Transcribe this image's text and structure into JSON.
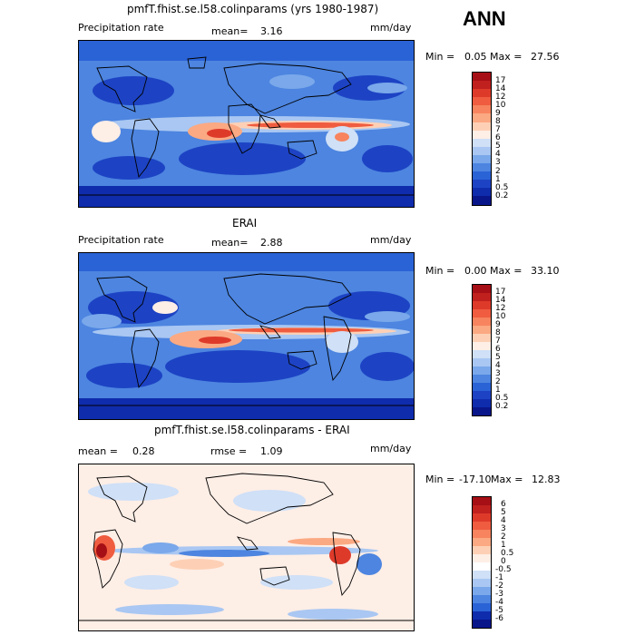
{
  "season": "ANN",
  "panels": [
    {
      "title": "pmfT.fhist.se.l58.colinparams (yrs 1980-1987)",
      "left_label": "Precipitation rate",
      "stat1_label": "mean=",
      "stat1_value": "3.16",
      "units": "mm/day",
      "min_label": "Min =",
      "min_value": "0.05",
      "max_label": "Max =",
      "max_value": "27.56",
      "levels": [
        "17",
        "14",
        "12",
        "10",
        "9",
        "8",
        "7",
        "6",
        "5",
        "4",
        "3",
        "2",
        "1",
        "0.5",
        "0.2"
      ],
      "colors": [
        "#a50f15",
        "#c0201e",
        "#de3a2a",
        "#ef5c3f",
        "#f7845e",
        "#fba982",
        "#fdd0b5",
        "#fdeee6",
        "#cfe0f7",
        "#a9c7f2",
        "#7aa8ea",
        "#4d85e0",
        "#2a63d6",
        "#1d43c4",
        "#0f2cad",
        "#08168a"
      ]
    },
    {
      "title": "ERAI",
      "left_label": "Precipitation rate",
      "stat1_label": "mean=",
      "stat1_value": "2.88",
      "units": "mm/day",
      "min_label": "Min =",
      "min_value": "0.00",
      "max_label": "Max =",
      "max_value": "33.10",
      "levels": [
        "17",
        "14",
        "12",
        "10",
        "9",
        "8",
        "7",
        "6",
        "5",
        "4",
        "3",
        "2",
        "1",
        "0.5",
        "0.2"
      ],
      "colors": [
        "#a50f15",
        "#c0201e",
        "#de3a2a",
        "#ef5c3f",
        "#f7845e",
        "#fba982",
        "#fdd0b5",
        "#fdeee6",
        "#cfe0f7",
        "#a9c7f2",
        "#7aa8ea",
        "#4d85e0",
        "#2a63d6",
        "#1d43c4",
        "#0f2cad",
        "#08168a"
      ]
    },
    {
      "title": "pmfT.fhist.se.l58.colinparams - ERAI",
      "left_label": "mean =",
      "left_value": "0.28",
      "stat1_label": "rmse =",
      "stat1_value": "1.09",
      "units": "mm/day",
      "min_label": "Min =",
      "min_value": "-17.10",
      "max_label": "Max =",
      "max_value": "12.83",
      "levels": [
        "6",
        "5",
        "4",
        "3",
        "2",
        "1",
        "0.5",
        "0",
        "-0.5",
        "-1",
        "-2",
        "-3",
        "-4",
        "-5",
        "-6"
      ],
      "colors": [
        "#a50f15",
        "#c0201e",
        "#de3a2a",
        "#ef5c3f",
        "#f7845e",
        "#fba982",
        "#fdd0b5",
        "#fdeee6",
        "#ffffff",
        "#cfe0f7",
        "#a9c7f2",
        "#7aa8ea",
        "#4d85e0",
        "#2a63d6",
        "#0f2cad",
        "#08168a"
      ]
    }
  ]
}
